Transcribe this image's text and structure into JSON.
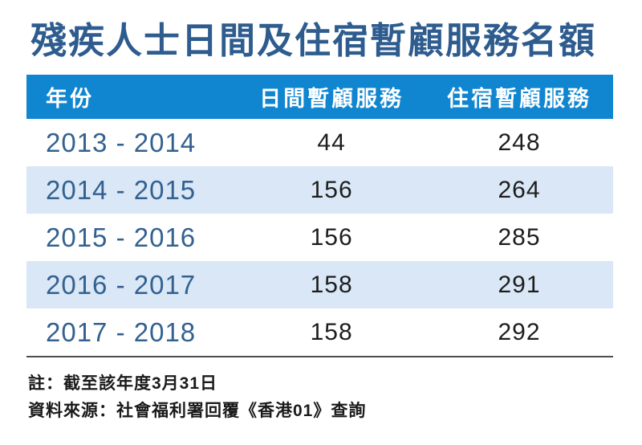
{
  "title": "殘疾人士日間及住宿暫顧服務名額",
  "table": {
    "columns": {
      "year": "年份",
      "day": "日間暫顧服務",
      "residential": "住宿暫顧服務"
    },
    "rows": [
      {
        "year": "2013 - 2014",
        "day": "44",
        "residential": "248"
      },
      {
        "year": "2014 - 2015",
        "day": "156",
        "residential": "264"
      },
      {
        "year": "2015 - 2016",
        "day": "156",
        "residential": "285"
      },
      {
        "year": "2016 - 2017",
        "day": "158",
        "residential": "291"
      },
      {
        "year": "2017 - 2018",
        "day": "158",
        "residential": "292"
      }
    ]
  },
  "notes": {
    "note": "註：截至該年度3月31日",
    "source": "資料來源：社會福利署回覆《香港01》查詢"
  },
  "colors": {
    "header_bg": "#1086d0",
    "stripe_bg": "#d9e7f6",
    "title_text": "#2e5c8e",
    "year_text": "#336190",
    "value_text": "#1d1d1d",
    "header_text": "#ffffff",
    "bottom_rule": "#4d4d4d"
  },
  "chart_data": {
    "type": "table",
    "title": "殘疾人士日間及住宿暫顧服務名額",
    "columns": [
      "年份",
      "日間暫顧服務",
      "住宿暫顧服務"
    ],
    "rows": [
      [
        "2013 - 2014",
        44,
        248
      ],
      [
        "2014 - 2015",
        156,
        264
      ],
      [
        "2015 - 2016",
        156,
        285
      ],
      [
        "2016 - 2017",
        158,
        291
      ],
      [
        "2017 - 2018",
        158,
        292
      ]
    ],
    "series": [
      {
        "name": "日間暫顧服務",
        "values": [
          44,
          156,
          156,
          158,
          158
        ]
      },
      {
        "name": "住宿暫顧服務",
        "values": [
          248,
          264,
          285,
          291,
          292
        ]
      }
    ],
    "categories": [
      "2013 - 2014",
      "2014 - 2015",
      "2015 - 2016",
      "2016 - 2017",
      "2017 - 2018"
    ],
    "notes": [
      "註：截至該年度3月31日",
      "資料來源：社會福利署回覆《香港01》查詢"
    ]
  }
}
